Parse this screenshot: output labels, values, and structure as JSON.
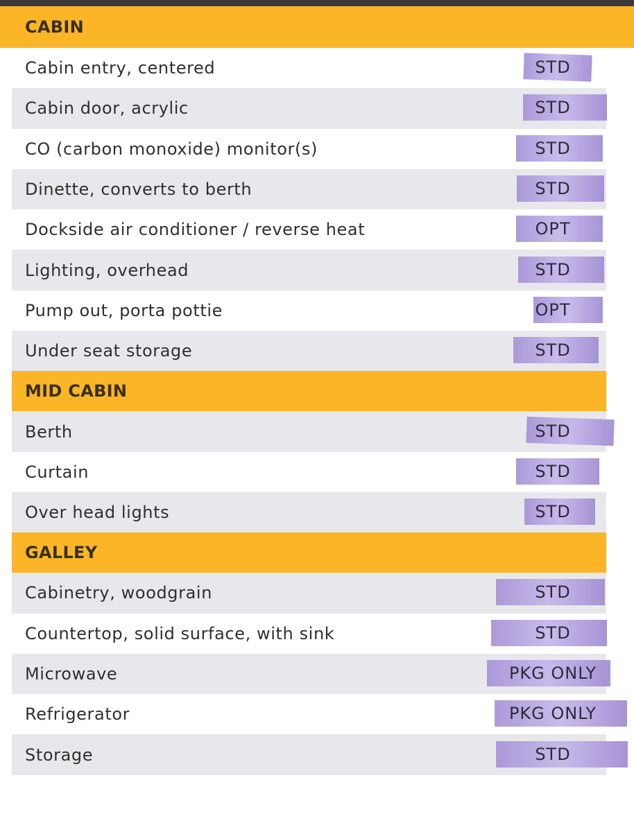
{
  "colors": {
    "section_header_bg": "#fbb526",
    "row_shade_bg": "#e8e8ec",
    "highlight": "#b3a2e0"
  },
  "sections": [
    {
      "title": "CABIN",
      "rows": [
        {
          "feature": "Cabin entry, centered",
          "status": "STD"
        },
        {
          "feature": "Cabin door, acrylic",
          "status": "STD"
        },
        {
          "feature": "CO (carbon monoxide) monitor(s)",
          "status": "STD"
        },
        {
          "feature": "Dinette, converts to berth",
          "status": "STD"
        },
        {
          "feature": "Dockside air conditioner / reverse heat",
          "status": "OPT"
        },
        {
          "feature": "Lighting, overhead",
          "status": "STD"
        },
        {
          "feature": "Pump out, porta pottie",
          "status": "OPT"
        },
        {
          "feature": "Under seat storage",
          "status": "STD"
        }
      ]
    },
    {
      "title": "MID CABIN",
      "rows": [
        {
          "feature": "Berth",
          "status": "STD"
        },
        {
          "feature": "Curtain",
          "status": "STD"
        },
        {
          "feature": "Over head lights",
          "status": "STD"
        }
      ]
    },
    {
      "title": "GALLEY",
      "rows": [
        {
          "feature": "Cabinetry, woodgrain",
          "status": "STD"
        },
        {
          "feature": "Countertop, solid surface, with sink",
          "status": "STD"
        },
        {
          "feature": "Microwave",
          "status": "PKG ONLY"
        },
        {
          "feature": "Refrigerator",
          "status": "PKG ONLY"
        },
        {
          "feature": "Storage",
          "status": "STD"
        }
      ]
    }
  ]
}
